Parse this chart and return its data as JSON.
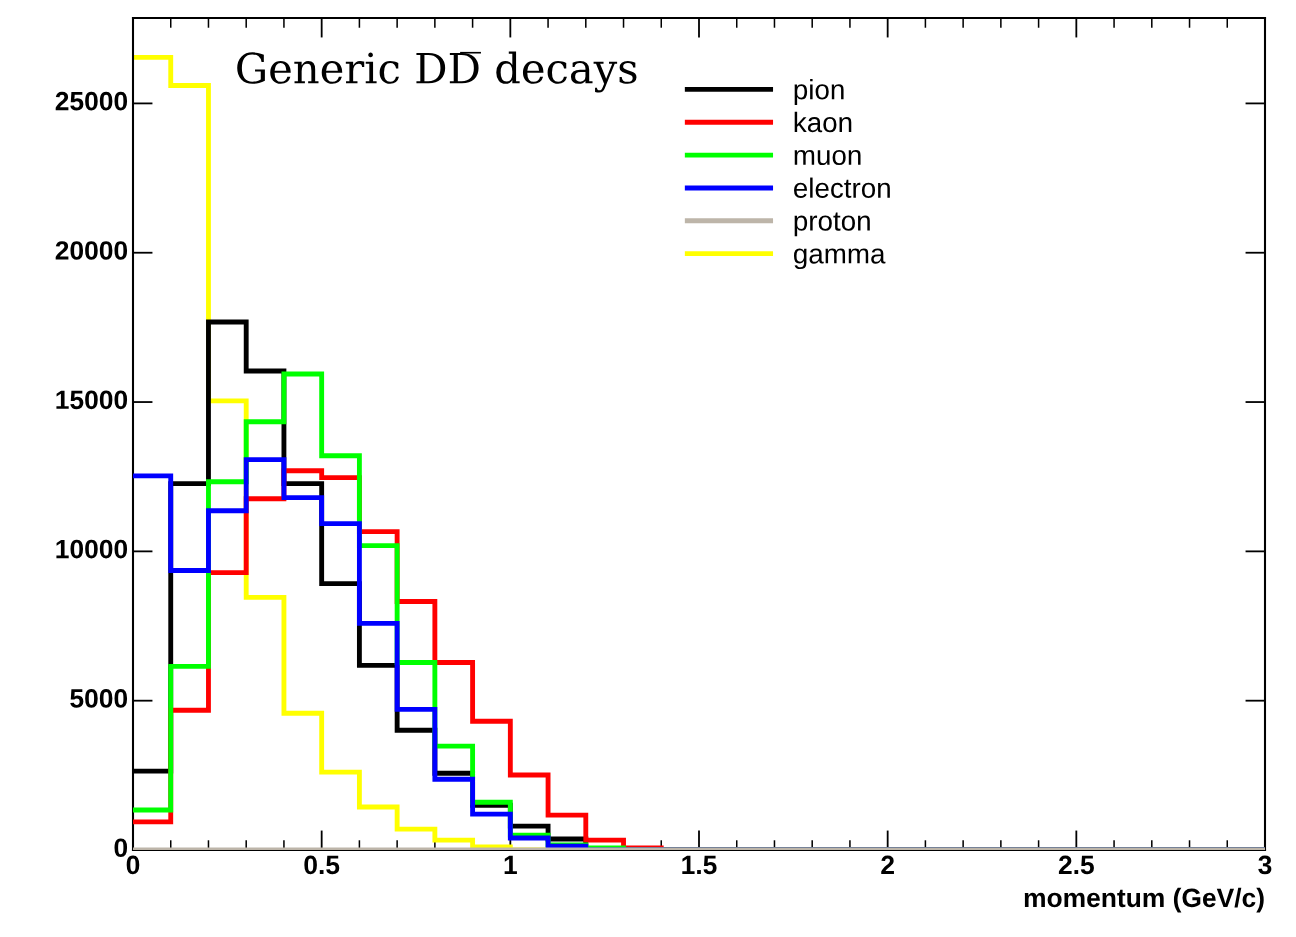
{
  "chart_data": {
    "type": "histogram",
    "title": "Generic DD̅ decays",
    "xlabel": "momentum (GeV/c)",
    "bins": [
      0,
      0.1,
      0.2,
      0.3,
      0.4,
      0.5,
      0.6,
      0.7,
      0.8,
      0.9,
      1.0,
      1.1,
      1.2,
      1.3,
      1.4,
      1.5,
      1.6,
      1.7,
      1.8,
      1.9,
      2.0,
      2.1,
      2.2,
      2.3,
      2.4,
      2.5,
      2.6,
      2.7,
      2.8,
      2.9,
      3.0
    ],
    "series": [
      {
        "name": "pion",
        "color": "#000000",
        "values": [
          2640,
          12270,
          17680,
          16040,
          12270,
          8920,
          6180,
          4010,
          2570,
          1500,
          800,
          370,
          0,
          0,
          0,
          0,
          0,
          0,
          0,
          0,
          0,
          0,
          0,
          0,
          0,
          0,
          0,
          0,
          0,
          0
        ]
      },
      {
        "name": "kaon",
        "color": "#ff0000",
        "values": [
          940,
          4680,
          9290,
          11760,
          12700,
          12470,
          10660,
          8320,
          6280,
          4310,
          2510,
          1170,
          330,
          70,
          0,
          0,
          0,
          0,
          0,
          0,
          0,
          0,
          0,
          0,
          0,
          0,
          0,
          0,
          0,
          0
        ]
      },
      {
        "name": "muon",
        "color": "#00ff00",
        "values": [
          1340,
          6150,
          12330,
          14340,
          15940,
          13200,
          10190,
          6280,
          3480,
          1600,
          500,
          170,
          70,
          0,
          0,
          0,
          0,
          0,
          0,
          0,
          0,
          0,
          0,
          0,
          0,
          0,
          0,
          0,
          0,
          0
        ]
      },
      {
        "name": "electron",
        "color": "#0000ff",
        "values": [
          12530,
          9360,
          11360,
          13070,
          11800,
          10930,
          7590,
          4710,
          2370,
          1200,
          400,
          130,
          0,
          0,
          0,
          0,
          0,
          0,
          0,
          0,
          0,
          0,
          0,
          0,
          0,
          0,
          0,
          0,
          0,
          0
        ]
      },
      {
        "name": "proton",
        "color": "#bdb5a9",
        "values": [
          0,
          0,
          0,
          0,
          0,
          0,
          0,
          0,
          0,
          0,
          0,
          0,
          0,
          0,
          0,
          0,
          0,
          0,
          0,
          0,
          0,
          0,
          0,
          0,
          0,
          0,
          0,
          0,
          0,
          0
        ]
      },
      {
        "name": "gamma",
        "color": "#ffff00",
        "values": [
          26540,
          25600,
          15040,
          8460,
          4580,
          2610,
          1440,
          700,
          330,
          100,
          0,
          0,
          0,
          0,
          0,
          0,
          0,
          0,
          0,
          0,
          0,
          0,
          0,
          0,
          0,
          0,
          0,
          0,
          0,
          0
        ]
      }
    ],
    "xlim": [
      0,
      3
    ],
    "xticks": [
      0,
      0.5,
      1,
      1.5,
      2,
      2.5,
      3
    ],
    "ylim": [
      0,
      27860
    ],
    "yticks": [
      0,
      5000,
      10000,
      15000,
      20000,
      25000
    ],
    "legend": "top right",
    "grid": false
  }
}
